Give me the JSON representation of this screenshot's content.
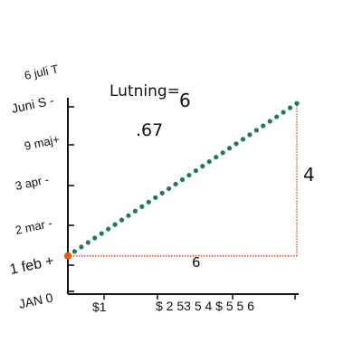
{
  "chart_data": {
    "type": "line",
    "title": "Lutning=",
    "y_ticks": [
      "JAN 0",
      "1 feb +",
      "2 mar -",
      "3 apr -",
      "9 maj+",
      "Juni S -",
      "6 juli T"
    ],
    "x_ticks": [
      "$1",
      "$ 2 53 5 4 $ 5 5 6"
    ],
    "series": [
      {
        "style": "dotted",
        "color": "#1f7a55",
        "x": [
          0,
          6
        ],
        "y": [
          1,
          5
        ]
      }
    ],
    "start_point": {
      "x": 0,
      "y": 1,
      "color": "#e05a1a"
    },
    "slope_triangle": {
      "run_label": "6",
      "rise_label": "4",
      "color": "#e03a1a"
    },
    "slope_label": {
      "numerator": "6",
      "denominator": ".67"
    },
    "xlim": [
      0,
      6
    ],
    "ylim": [
      0,
      6
    ],
    "grid": false
  }
}
